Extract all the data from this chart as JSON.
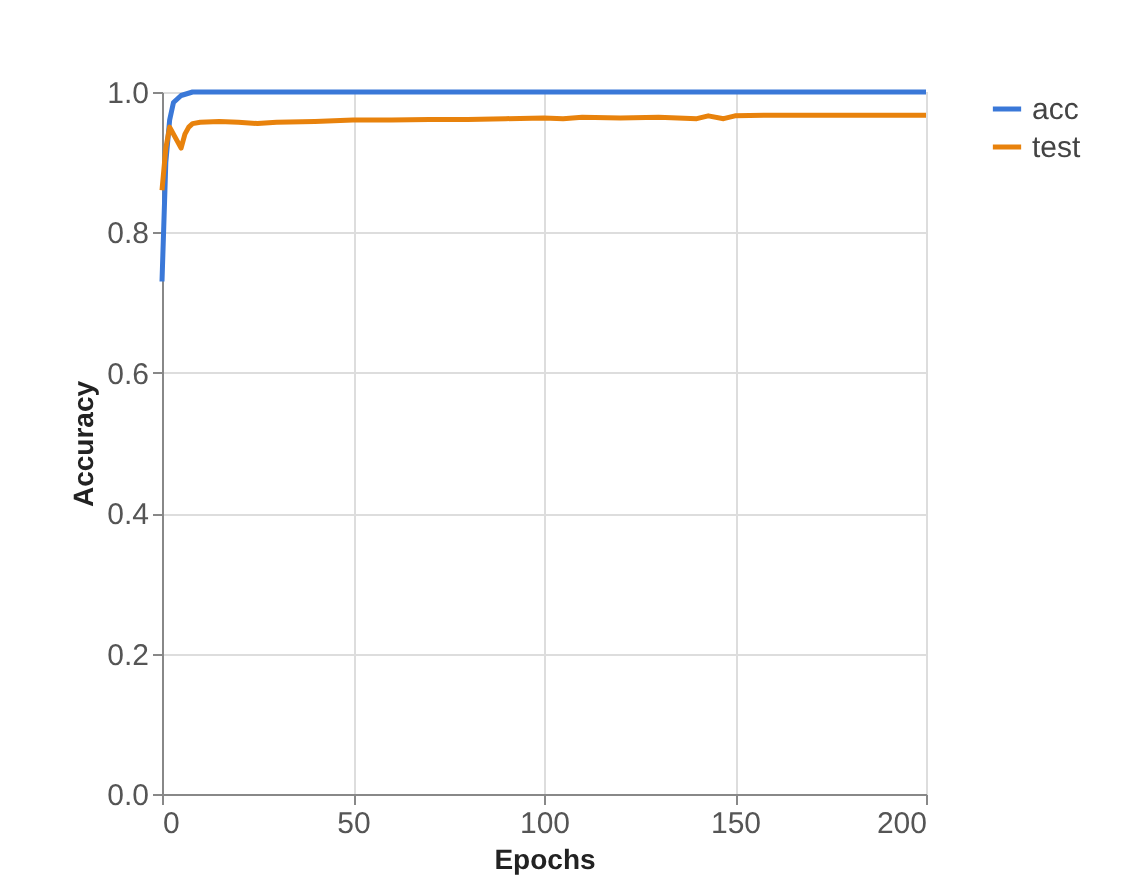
{
  "chart_data": {
    "type": "line",
    "xlabel": "Epochs",
    "ylabel": "Accuracy",
    "xlim": [
      0,
      200
    ],
    "xticks": [
      0,
      50,
      100,
      150,
      200
    ],
    "ylim": [
      0,
      1
    ],
    "yticks": [
      {
        "value": 0,
        "label": "0.0"
      },
      0.2,
      0.4,
      0.6,
      0.8,
      {
        "value": 1,
        "label": "1.0"
      }
    ],
    "grid": true,
    "legend": "top right",
    "marker": "none",
    "line_style": "solid",
    "series": [
      {
        "name": "acc",
        "color": "#3a78d8",
        "x": [
          0,
          1,
          2,
          3,
          5,
          8,
          200
        ],
        "values": [
          0.73,
          0.9,
          0.96,
          0.985,
          0.995,
          1,
          1
        ]
      },
      {
        "name": "test",
        "color": "#e8820c",
        "x": [
          0,
          1,
          2,
          3,
          4,
          5,
          6,
          7,
          8,
          10,
          15,
          20,
          25,
          30,
          40,
          50,
          60,
          70,
          80,
          90,
          100,
          105,
          110,
          120,
          130,
          140,
          143,
          147,
          150,
          160,
          180,
          200
        ],
        "values": [
          0.86,
          0.92,
          0.95,
          0.94,
          0.93,
          0.92,
          0.94,
          0.95,
          0.955,
          0.957,
          0.958,
          0.957,
          0.955,
          0.957,
          0.958,
          0.96,
          0.96,
          0.961,
          0.961,
          0.962,
          0.963,
          0.962,
          0.964,
          0.963,
          0.964,
          0.962,
          0.966,
          0.962,
          0.966,
          0.967,
          0.967,
          0.967
        ]
      }
    ]
  }
}
